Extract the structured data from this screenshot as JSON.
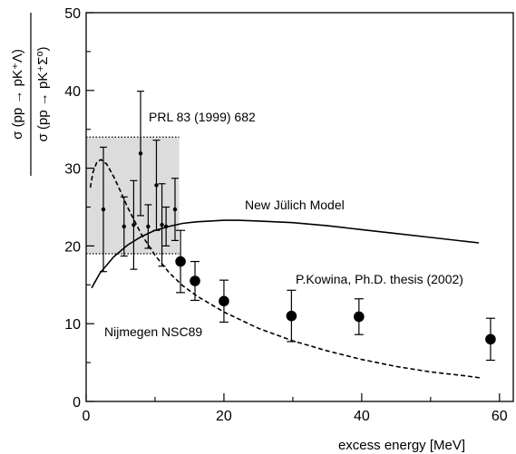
{
  "chart_data": {
    "type": "scatter",
    "xlabel": "excess energy  [MeV]",
    "ylabel_numerator": "σ (pp → pK⁺Λ)",
    "ylabel_denominator": "σ (pp → pK⁺Σ⁰)",
    "xlim": [
      0,
      62
    ],
    "ylim": [
      0,
      50
    ],
    "x_ticks": [
      0,
      20,
      40,
      60
    ],
    "y_ticks": [
      0,
      10,
      20,
      30,
      40,
      50
    ],
    "shaded_region": {
      "x": [
        0,
        13.5
      ],
      "y": [
        19,
        34
      ]
    },
    "series": [
      {
        "name": "PRL 83 (1999) 682",
        "marker": "small-dot",
        "points": [
          {
            "x": 2.5,
            "y": 24.7,
            "err": 8.0
          },
          {
            "x": 5.5,
            "y": 22.5,
            "err": 3.8
          },
          {
            "x": 6.9,
            "y": 22.7,
            "err": 5.7
          },
          {
            "x": 7.9,
            "y": 31.9,
            "err": 8.0
          },
          {
            "x": 9.0,
            "y": 22.5,
            "err": 2.8
          },
          {
            "x": 10.2,
            "y": 27.8,
            "err": 5.8
          },
          {
            "x": 11.0,
            "y": 22.7,
            "err": 5.3
          },
          {
            "x": 11.6,
            "y": 22.5,
            "err": 2.5
          },
          {
            "x": 12.9,
            "y": 24.7,
            "err": 4.0
          }
        ]
      },
      {
        "name": "P.Kowina, Ph.D. thesis (2002)",
        "marker": "large-dot",
        "points": [
          {
            "x": 13.7,
            "y": 18.0,
            "err": 4.0
          },
          {
            "x": 15.8,
            "y": 15.5,
            "err": 2.5
          },
          {
            "x": 20.0,
            "y": 12.9,
            "err": 2.7
          },
          {
            "x": 29.8,
            "y": 11.0,
            "err": 3.3
          },
          {
            "x": 39.6,
            "y": 10.9,
            "err": 2.3
          },
          {
            "x": 58.7,
            "y": 8.0,
            "err": 2.7
          }
        ]
      },
      {
        "name": "New Jülich Model",
        "style": "solid",
        "line": [
          [
            0.8,
            14.6
          ],
          [
            2,
            16.5
          ],
          [
            4,
            18.6
          ],
          [
            6,
            20.1
          ],
          [
            8,
            21.2
          ],
          [
            10,
            22.0
          ],
          [
            12,
            22.5
          ],
          [
            14,
            22.9
          ],
          [
            16,
            23.1
          ],
          [
            18,
            23.2
          ],
          [
            20,
            23.3
          ],
          [
            22,
            23.3
          ],
          [
            25,
            23.2
          ],
          [
            30,
            23.0
          ],
          [
            35,
            22.6
          ],
          [
            40,
            22.1
          ],
          [
            45,
            21.6
          ],
          [
            50,
            21.1
          ],
          [
            55,
            20.6
          ],
          [
            57,
            20.4
          ]
        ]
      },
      {
        "name": "Nijmegen NSC89",
        "style": "dashed",
        "line": [
          [
            0.6,
            27.5
          ],
          [
            1,
            29.5
          ],
          [
            1.6,
            30.9
          ],
          [
            2.2,
            31.1
          ],
          [
            3,
            30.5
          ],
          [
            4,
            28.9
          ],
          [
            5,
            27.0
          ],
          [
            6,
            25.0
          ],
          [
            8,
            21.5
          ],
          [
            10,
            18.8
          ],
          [
            12,
            16.6
          ],
          [
            14,
            14.9
          ],
          [
            16,
            13.6
          ],
          [
            20,
            11.5
          ],
          [
            25,
            9.4
          ],
          [
            30,
            7.8
          ],
          [
            35,
            6.5
          ],
          [
            40,
            5.4
          ],
          [
            45,
            4.5
          ],
          [
            50,
            3.8
          ],
          [
            55,
            3.3
          ],
          [
            57.5,
            3.0
          ]
        ]
      }
    ],
    "annotations": {
      "prl": "PRL 83 (1999) 682",
      "julich": "New Jülich Model",
      "kowina": "P.Kowina, Ph.D. thesis (2002)",
      "nijmegen": "Nijmegen NSC89"
    }
  }
}
